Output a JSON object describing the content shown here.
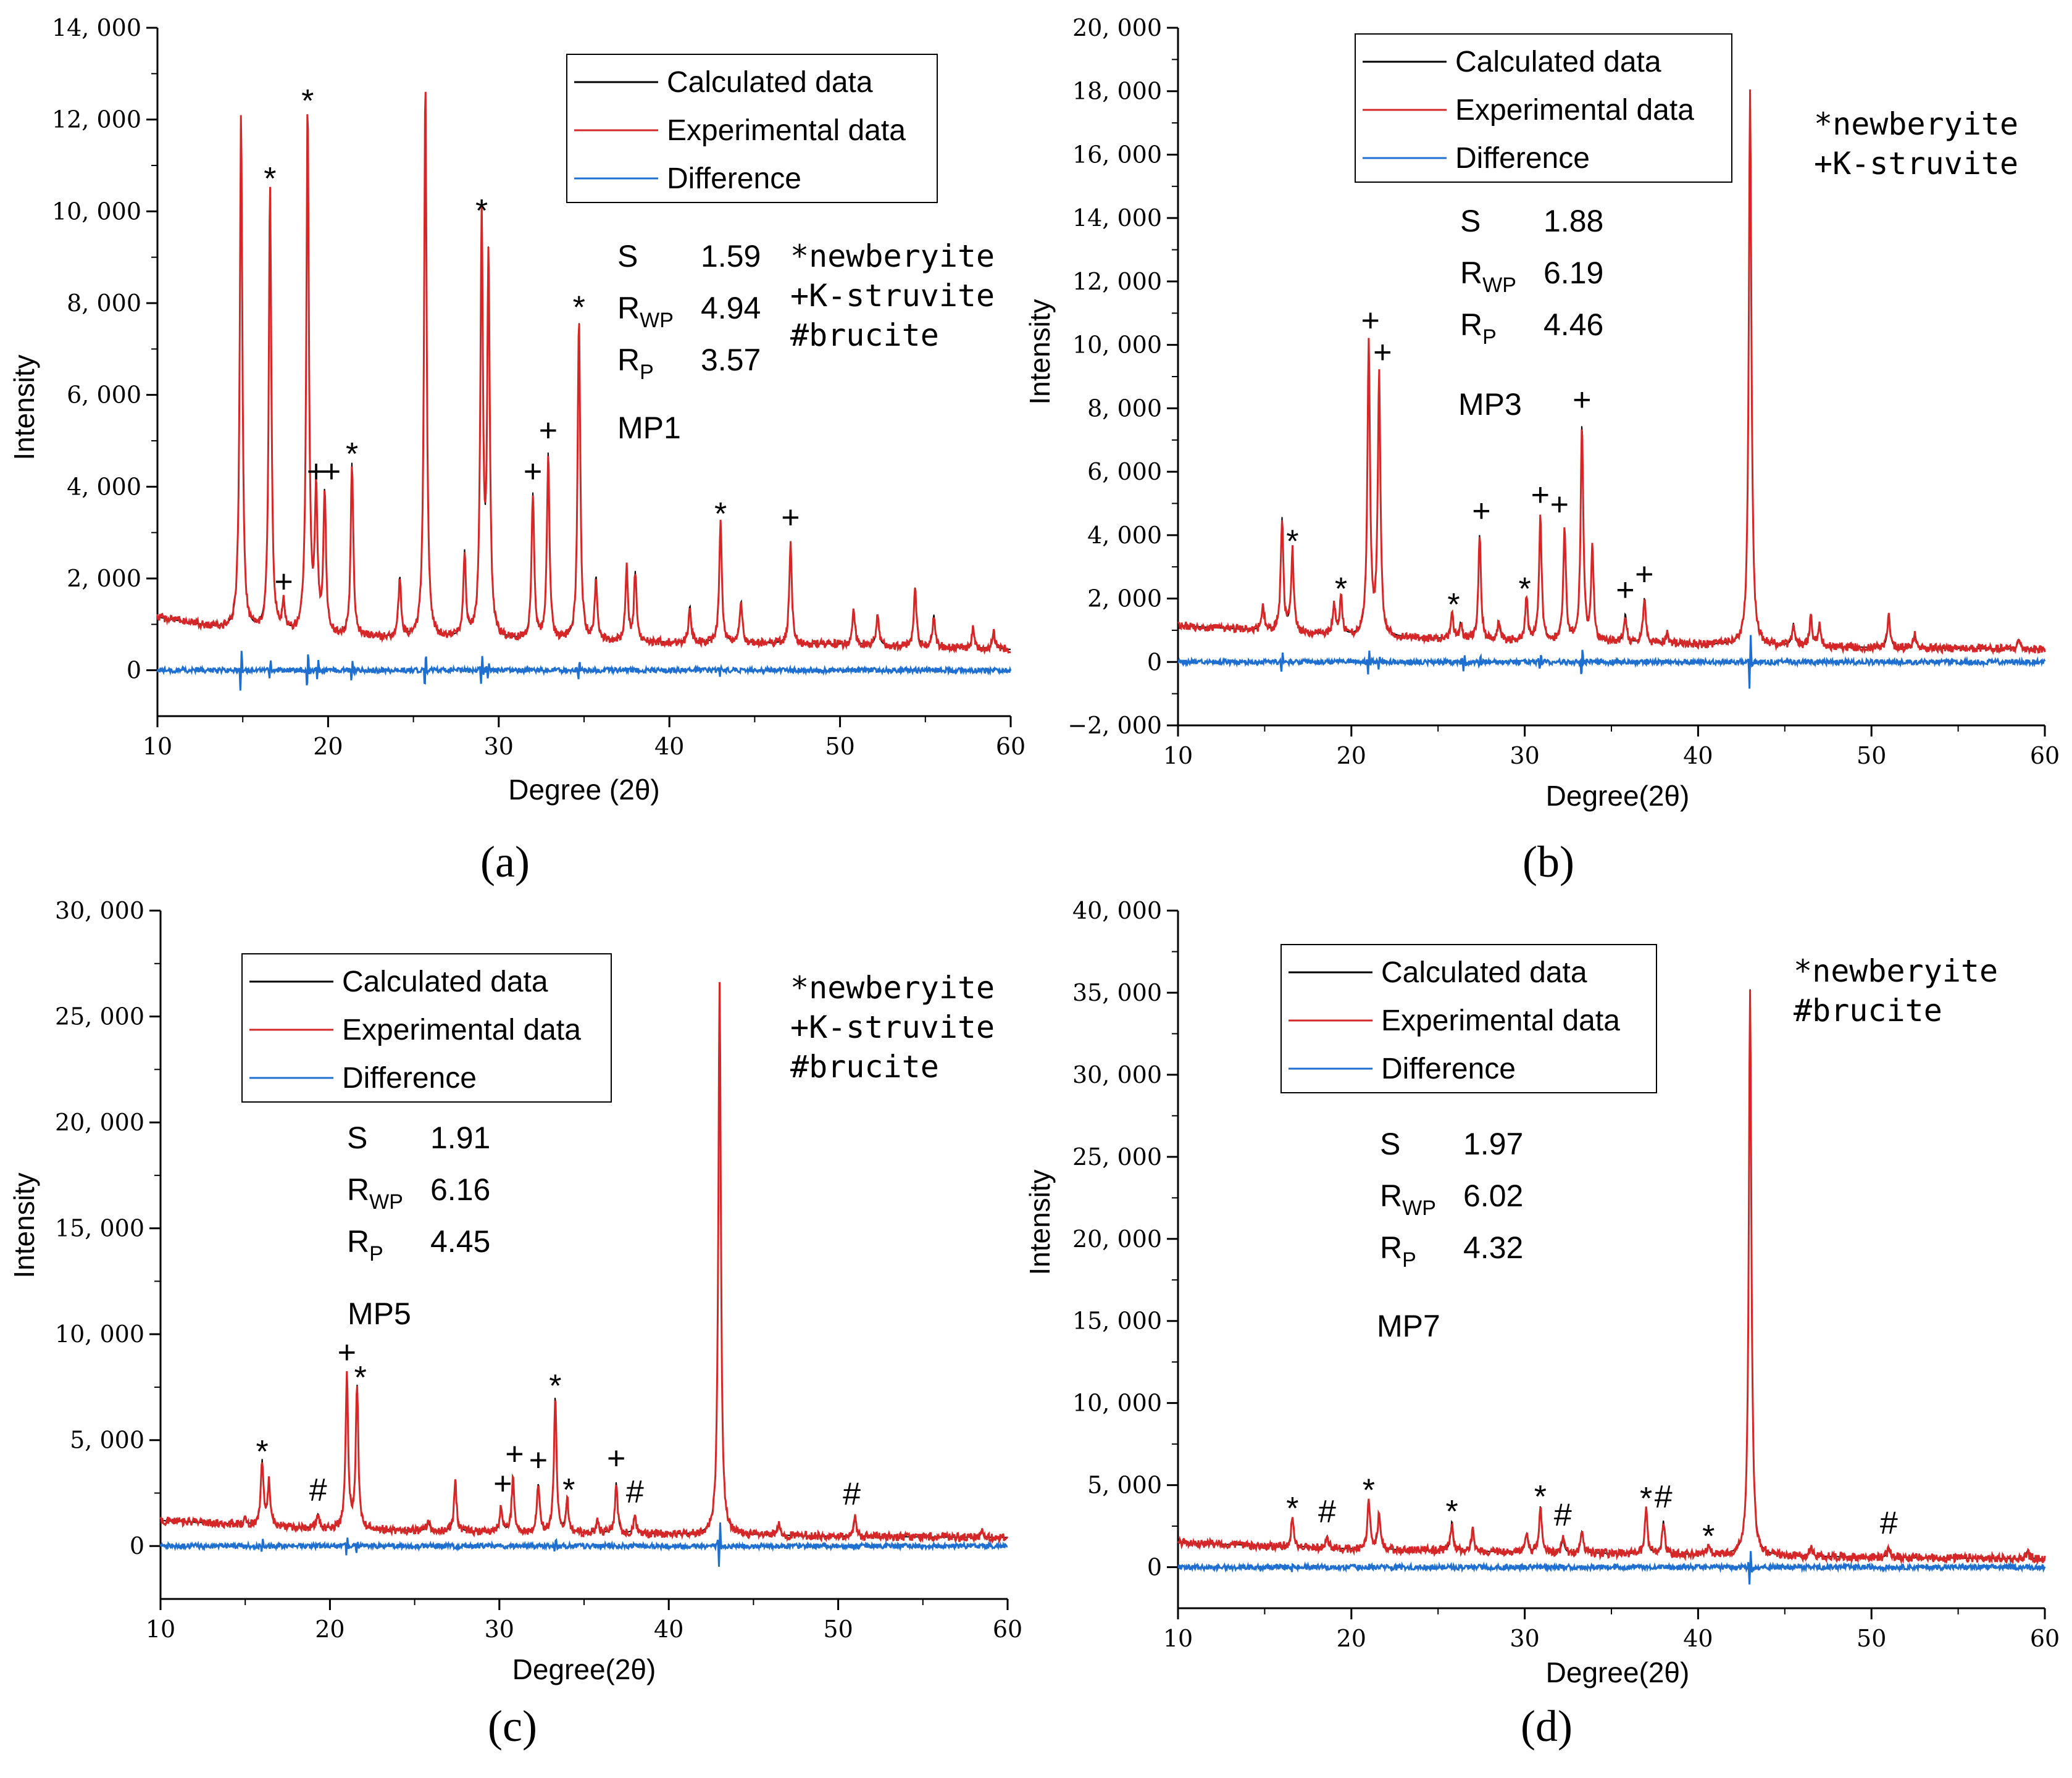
{
  "colors": {
    "calculated": "#000000",
    "experimental": "#d62728",
    "difference": "#1f6fd1"
  },
  "chart_data": [
    {
      "type": "line",
      "panel_label": "(a)",
      "sample": "MP1",
      "xlabel": "Degree (2θ)",
      "ylabel": "Intensity",
      "xlim": [
        10,
        60
      ],
      "ylim": [
        -1000,
        14000
      ],
      "xticks": [
        "10",
        "20",
        "30",
        "40",
        "50",
        "60"
      ],
      "yticks": [
        "0",
        "2, 000",
        "4, 000",
        "6, 000",
        "8, 000",
        "10, 000",
        "12, 000",
        "14, 000"
      ],
      "legend": [
        "Calculated data",
        "Experimental data",
        "Difference"
      ],
      "stats": [
        {
          "label": "S",
          "sub": "",
          "value": "1.59"
        },
        {
          "label": "R",
          "sub": "WP",
          "value": "4.94"
        },
        {
          "label": "R",
          "sub": "P",
          "value": "3.57"
        }
      ],
      "phase_key": [
        "*newberyite",
        "+K-struvite",
        "#brucite"
      ],
      "background": [
        [
          10,
          1150
        ],
        [
          15,
          820
        ],
        [
          20,
          720
        ],
        [
          30,
          650
        ],
        [
          40,
          600
        ],
        [
          50,
          560
        ],
        [
          60,
          450
        ]
      ],
      "peaks": [
        [
          14.9,
          12100
        ],
        [
          16.6,
          10500
        ],
        [
          17.4,
          1400
        ],
        [
          18.8,
          12200
        ],
        [
          19.3,
          3800
        ],
        [
          19.8,
          3800
        ],
        [
          21.4,
          4500
        ],
        [
          24.2,
          2000
        ],
        [
          25.7,
          12800
        ],
        [
          28,
          2500
        ],
        [
          29,
          9800
        ],
        [
          29.4,
          8800
        ],
        [
          32,
          3800
        ],
        [
          32.9,
          4700
        ],
        [
          34.7,
          7700
        ],
        [
          35.7,
          2000
        ],
        [
          37.5,
          2200
        ],
        [
          38,
          2100
        ],
        [
          41.2,
          1400
        ],
        [
          43,
          3200
        ],
        [
          44.2,
          1500
        ],
        [
          47.1,
          2800
        ],
        [
          50.8,
          1300
        ],
        [
          52.2,
          1200
        ],
        [
          54.4,
          1800
        ],
        [
          55.5,
          1200
        ],
        [
          57.8,
          900
        ],
        [
          59,
          850
        ]
      ],
      "diff_spikes": [
        [
          14.9,
          550
        ],
        [
          16.6,
          250
        ],
        [
          18.8,
          450
        ],
        [
          19.4,
          250
        ],
        [
          21.4,
          250
        ],
        [
          25.7,
          450
        ],
        [
          29,
          380
        ],
        [
          29.4,
          250
        ],
        [
          34.7,
          250
        ],
        [
          43,
          150
        ]
      ],
      "markers": [
        {
          "x": 16.6,
          "y": 10500,
          "symbol": "*"
        },
        {
          "x": 18.8,
          "y": 12200,
          "symbol": "*"
        },
        {
          "x": 17.4,
          "y": 1400,
          "symbol": "+"
        },
        {
          "x": 19.3,
          "y": 3800,
          "symbol": "+"
        },
        {
          "x": 20.2,
          "y": 3800,
          "symbol": "+"
        },
        {
          "x": 21.4,
          "y": 4500,
          "symbol": "*"
        },
        {
          "x": 29,
          "y": 9800,
          "symbol": "*"
        },
        {
          "x": 32,
          "y": 3800,
          "symbol": "+"
        },
        {
          "x": 32.9,
          "y": 4700,
          "symbol": "+"
        },
        {
          "x": 34.7,
          "y": 7700,
          "symbol": "*"
        },
        {
          "x": 43,
          "y": 3200,
          "symbol": "*"
        },
        {
          "x": 47.1,
          "y": 2800,
          "symbol": "+"
        }
      ]
    },
    {
      "type": "line",
      "panel_label": "(b)",
      "sample": "MP3",
      "xlabel": "Degree(2θ)",
      "ylabel": "Intensity",
      "xlim": [
        10,
        60
      ],
      "ylim": [
        -2000,
        20000
      ],
      "xticks": [
        "10",
        "20",
        "30",
        "40",
        "50",
        "60"
      ],
      "yticks": [
        "−2, 000",
        "0",
        "2, 000",
        "4, 000",
        "6, 000",
        "8, 000",
        "10, 000",
        "12, 000",
        "14, 000",
        "16, 000",
        "18, 000",
        "20, 000"
      ],
      "legend": [
        "Calculated data",
        "Experimental data",
        "Difference"
      ],
      "stats": [
        {
          "label": "S",
          "sub": "",
          "value": "1.88"
        },
        {
          "label": "R",
          "sub": "WP",
          "value": "6.19"
        },
        {
          "label": "R",
          "sub": "P",
          "value": "4.46"
        }
      ],
      "phase_key": [
        "*newberyite",
        "+K-struvite"
      ],
      "background": [
        [
          10,
          1150
        ],
        [
          20,
          800
        ],
        [
          30,
          650
        ],
        [
          40,
          550
        ],
        [
          50,
          450
        ],
        [
          60,
          400
        ]
      ],
      "peaks": [
        [
          14.9,
          1800
        ],
        [
          16,
          4500
        ],
        [
          16.6,
          3500
        ],
        [
          19,
          1800
        ],
        [
          19.4,
          2000
        ],
        [
          21,
          10000
        ],
        [
          21.6,
          9000
        ],
        [
          25.8,
          1500
        ],
        [
          26.3,
          1200
        ],
        [
          27.4,
          4000
        ],
        [
          28.5,
          1200
        ],
        [
          30.1,
          2000
        ],
        [
          30.9,
          4500
        ],
        [
          32.3,
          4200
        ],
        [
          33.3,
          7500
        ],
        [
          33.9,
          3500
        ],
        [
          35.8,
          1500
        ],
        [
          36.9,
          2000
        ],
        [
          38.2,
          900
        ],
        [
          43,
          18000
        ],
        [
          45.5,
          1200
        ],
        [
          46.5,
          1400
        ],
        [
          47,
          1200
        ],
        [
          51,
          1500
        ],
        [
          52.5,
          900
        ],
        [
          58.5,
          700
        ]
      ],
      "diff_spikes": [
        [
          16,
          300
        ],
        [
          21,
          400
        ],
        [
          21.6,
          300
        ],
        [
          26.5,
          350
        ],
        [
          27.4,
          250
        ],
        [
          30.9,
          350
        ],
        [
          33.3,
          500
        ],
        [
          43,
          1100
        ]
      ],
      "markers": [
        {
          "x": 16.6,
          "y": 3500,
          "symbol": "*"
        },
        {
          "x": 19.4,
          "y": 2000,
          "symbol": "*"
        },
        {
          "x": 21.1,
          "y": 10000,
          "symbol": "+"
        },
        {
          "x": 21.8,
          "y": 9000,
          "symbol": "+"
        },
        {
          "x": 25.9,
          "y": 1500,
          "symbol": "*"
        },
        {
          "x": 27.5,
          "y": 4000,
          "symbol": "+"
        },
        {
          "x": 30,
          "y": 2000,
          "symbol": "*"
        },
        {
          "x": 30.9,
          "y": 4500,
          "symbol": "+"
        },
        {
          "x": 32,
          "y": 4200,
          "symbol": "+"
        },
        {
          "x": 33.3,
          "y": 7500,
          "symbol": "+"
        },
        {
          "x": 35.8,
          "y": 1500,
          "symbol": "+"
        },
        {
          "x": 36.9,
          "y": 2000,
          "symbol": "+"
        }
      ]
    },
    {
      "type": "line",
      "panel_label": "(c)",
      "sample": "MP5",
      "xlabel": "Degree(2θ)",
      "ylabel": "Intensity",
      "xlim": [
        10,
        60
      ],
      "ylim": [
        -2500,
        30000
      ],
      "xticks": [
        "10",
        "20",
        "30",
        "40",
        "50",
        "60"
      ],
      "yticks": [
        "0",
        "5, 000",
        "10, 000",
        "15, 000",
        "20, 000",
        "25, 000",
        "30, 000"
      ],
      "legend": [
        "Calculated data",
        "Experimental data",
        "Difference"
      ],
      "stats": [
        {
          "label": "S",
          "sub": "",
          "value": "1.91"
        },
        {
          "label": "R",
          "sub": "WP",
          "value": "6.16"
        },
        {
          "label": "R",
          "sub": "P",
          "value": "4.45"
        }
      ],
      "phase_key": [
        "*newberyite",
        "+K-struvite",
        "#brucite"
      ],
      "background": [
        [
          10,
          1200
        ],
        [
          20,
          800
        ],
        [
          30,
          650
        ],
        [
          40,
          550
        ],
        [
          50,
          450
        ],
        [
          60,
          400
        ]
      ],
      "peaks": [
        [
          15,
          1300
        ],
        [
          16,
          4000
        ],
        [
          16.4,
          3000
        ],
        [
          19.3,
          1500
        ],
        [
          21,
          8000
        ],
        [
          21.6,
          7500
        ],
        [
          25.8,
          1200
        ],
        [
          27.4,
          3000
        ],
        [
          30.1,
          1800
        ],
        [
          30.8,
          3200
        ],
        [
          32.3,
          2900
        ],
        [
          33.3,
          7100
        ],
        [
          34,
          2200
        ],
        [
          35.8,
          1200
        ],
        [
          36.9,
          3000
        ],
        [
          38,
          1400
        ],
        [
          43,
          26500
        ],
        [
          46.5,
          1000
        ],
        [
          51,
          1300
        ],
        [
          58.5,
          700
        ]
      ],
      "diff_spikes": [
        [
          16,
          400
        ],
        [
          21,
          400
        ],
        [
          21.6,
          300
        ],
        [
          33.3,
          400
        ],
        [
          43,
          1300
        ]
      ],
      "markers": [
        {
          "x": 16,
          "y": 4000,
          "symbol": "*"
        },
        {
          "x": 19.3,
          "y": 1500,
          "symbol": "#"
        },
        {
          "x": 21,
          "y": 8000,
          "symbol": "+"
        },
        {
          "x": 21.8,
          "y": 7500,
          "symbol": "*"
        },
        {
          "x": 30.2,
          "y": 1800,
          "symbol": "+"
        },
        {
          "x": 30.9,
          "y": 3200,
          "symbol": "+"
        },
        {
          "x": 32.3,
          "y": 2900,
          "symbol": "+"
        },
        {
          "x": 33.3,
          "y": 7100,
          "symbol": "*"
        },
        {
          "x": 34.1,
          "y": 2200,
          "symbol": "*"
        },
        {
          "x": 36.9,
          "y": 3000,
          "symbol": "+"
        },
        {
          "x": 38,
          "y": 1400,
          "symbol": "#"
        },
        {
          "x": 50.8,
          "y": 1300,
          "symbol": "#"
        }
      ]
    },
    {
      "type": "line",
      "panel_label": "(d)",
      "sample": "MP7",
      "xlabel": "Degree(2θ)",
      "ylabel": "Intensity",
      "xlim": [
        10,
        60
      ],
      "ylim": [
        -2500,
        40000
      ],
      "xticks": [
        "10",
        "20",
        "30",
        "40",
        "50",
        "60"
      ],
      "yticks": [
        "0",
        "5, 000",
        "10, 000",
        "15, 000",
        "20, 000",
        "25, 000",
        "30, 000",
        "35, 000",
        "40, 000"
      ],
      "legend": [
        "Calculated data",
        "Experimental data",
        "Difference"
      ],
      "stats": [
        {
          "label": "S",
          "sub": "",
          "value": "1.97"
        },
        {
          "label": "R",
          "sub": "WP",
          "value": "6.02"
        },
        {
          "label": "R",
          "sub": "P",
          "value": "4.32"
        }
      ],
      "phase_key": [
        "*newberyite",
        "#brucite"
      ],
      "background": [
        [
          10,
          1500
        ],
        [
          20,
          1100
        ],
        [
          30,
          900
        ],
        [
          40,
          750
        ],
        [
          50,
          600
        ],
        [
          60,
          500
        ]
      ],
      "peaks": [
        [
          16.6,
          3000
        ],
        [
          18.6,
          1900
        ],
        [
          21,
          4100
        ],
        [
          21.6,
          3200
        ],
        [
          25.8,
          2800
        ],
        [
          27,
          2200
        ],
        [
          30.1,
          2000
        ],
        [
          30.9,
          3700
        ],
        [
          32.2,
          1700
        ],
        [
          33.3,
          2200
        ],
        [
          37,
          3600
        ],
        [
          38,
          2800
        ],
        [
          40.6,
          1300
        ],
        [
          43,
          35200
        ],
        [
          46.5,
          1200
        ],
        [
          51,
          1200
        ],
        [
          59,
          1000
        ]
      ],
      "diff_spikes": [
        [
          16.6,
          200
        ],
        [
          21,
          250
        ],
        [
          43,
          1400
        ]
      ],
      "markers": [
        {
          "x": 16.6,
          "y": 3000,
          "symbol": "*"
        },
        {
          "x": 18.6,
          "y": 1900,
          "symbol": "#"
        },
        {
          "x": 21,
          "y": 4100,
          "symbol": "*"
        },
        {
          "x": 25.8,
          "y": 2800,
          "symbol": "*"
        },
        {
          "x": 30.9,
          "y": 3700,
          "symbol": "*"
        },
        {
          "x": 32.2,
          "y": 1700,
          "symbol": "#"
        },
        {
          "x": 37,
          "y": 3600,
          "symbol": "*"
        },
        {
          "x": 38,
          "y": 2800,
          "symbol": "#"
        },
        {
          "x": 40.6,
          "y": 1300,
          "symbol": "*"
        },
        {
          "x": 51,
          "y": 1200,
          "symbol": "#"
        }
      ]
    }
  ]
}
